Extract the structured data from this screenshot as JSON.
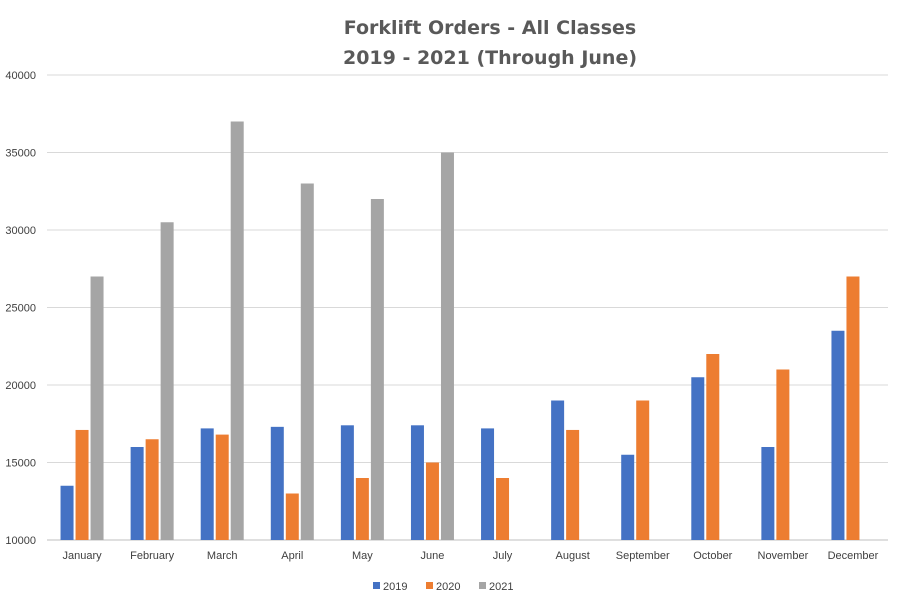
{
  "chart_data": {
    "type": "bar",
    "title": "Forklift Orders - All Classes",
    "subtitle": "2019 - 2021 (Through June)",
    "xlabel": "",
    "ylabel": "",
    "ylim": [
      10000,
      40000
    ],
    "yticks": [
      10000,
      15000,
      20000,
      25000,
      30000,
      35000,
      40000
    ],
    "grid": true,
    "legend_position": "bottom",
    "categories": [
      "January",
      "February",
      "March",
      "April",
      "May",
      "June",
      "July",
      "August",
      "September",
      "October",
      "November",
      "December"
    ],
    "series": [
      {
        "name": "2019",
        "color": "#4472C4",
        "values": [
          13500,
          16000,
          17200,
          17300,
          17400,
          17400,
          17200,
          19000,
          15500,
          20500,
          16000,
          23500
        ]
      },
      {
        "name": "2020",
        "color": "#ED7D31",
        "values": [
          17100,
          16500,
          16800,
          13000,
          14000,
          15000,
          14000,
          17100,
          19000,
          22000,
          21000,
          27000
        ]
      },
      {
        "name": "2021",
        "color": "#A5A5A5",
        "values": [
          27000,
          30500,
          37000,
          33000,
          32000,
          35000,
          null,
          null,
          null,
          null,
          null,
          null
        ]
      }
    ]
  }
}
